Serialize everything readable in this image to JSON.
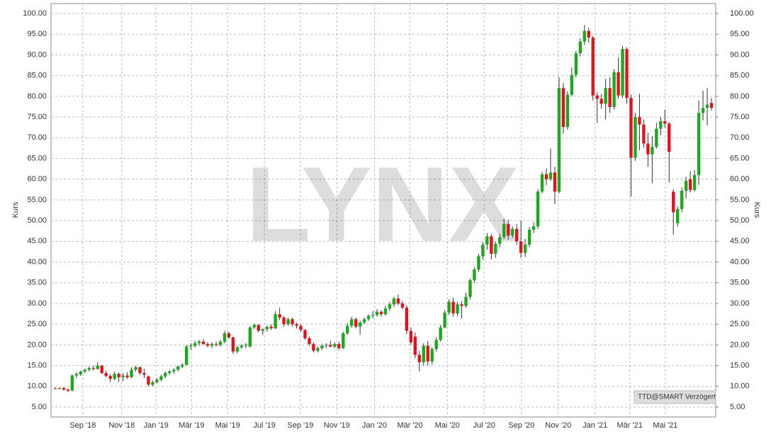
{
  "chart_data": {
    "type": "candlestick",
    "watermark": "LYNX",
    "source_label": "TTD@SMART Verzögert",
    "ylabel": "Kurs",
    "y2label": "Kurs",
    "up_color": "#1fa81f",
    "down_color": "#e0141e",
    "grid": true,
    "ylim": [
      2.6,
      102.4
    ],
    "y2lim": [
      2.6,
      102.4
    ],
    "yticks": [
      {
        "value": 5,
        "label": "5.00"
      },
      {
        "value": 10,
        "label": "10.00"
      },
      {
        "value": 15,
        "label": "15.00"
      },
      {
        "value": 20,
        "label": "20.00"
      },
      {
        "value": 25,
        "label": "25.00"
      },
      {
        "value": 30,
        "label": "30.00"
      },
      {
        "value": 35,
        "label": "35.00"
      },
      {
        "value": 40,
        "label": "40.00"
      },
      {
        "value": 45,
        "label": "45.00"
      },
      {
        "value": 50,
        "label": "50.00"
      },
      {
        "value": 55,
        "label": "55.00"
      },
      {
        "value": 60,
        "label": "60.00"
      },
      {
        "value": 65,
        "label": "65.00"
      },
      {
        "value": 70,
        "label": "70.00"
      },
      {
        "value": 75,
        "label": "75.00"
      },
      {
        "value": 80,
        "label": "80.00"
      },
      {
        "value": 85,
        "label": "85.00"
      },
      {
        "value": 90,
        "label": "90.00"
      },
      {
        "value": 95,
        "label": "95.00"
      },
      {
        "value": 100,
        "label": "100.00"
      }
    ],
    "y2ticks": [
      {
        "value": 5,
        "label": "5.00"
      },
      {
        "value": 10,
        "label": "10.00"
      },
      {
        "value": 15,
        "label": "15.00"
      },
      {
        "value": 20,
        "label": "20.00"
      },
      {
        "value": 25,
        "label": "25.00"
      },
      {
        "value": 30,
        "label": "30.00"
      },
      {
        "value": 35,
        "label": "35.00"
      },
      {
        "value": 40,
        "label": "40.00"
      },
      {
        "value": 45,
        "label": "45.00"
      },
      {
        "value": 50,
        "label": "50.00"
      },
      {
        "value": 55,
        "label": "55.00"
      },
      {
        "value": 60,
        "label": "60.00"
      },
      {
        "value": 65,
        "label": "65.00"
      },
      {
        "value": 70,
        "label": "70.00"
      },
      {
        "value": 75,
        "label": "75.00"
      },
      {
        "value": 80,
        "label": "80.00"
      },
      {
        "value": 85,
        "label": "85.00"
      },
      {
        "value": 90,
        "label": "90.00"
      },
      {
        "value": 95,
        "label": "95.00"
      },
      {
        "value": 100,
        "label": "100.00"
      }
    ],
    "xticks": [
      {
        "value": 6.5,
        "label": "Sep '18"
      },
      {
        "value": 15.7,
        "label": "Nov '18"
      },
      {
        "value": 23.8,
        "label": "Jan '19"
      },
      {
        "value": 32.2,
        "label": "Mär '19"
      },
      {
        "value": 40.7,
        "label": "Mai '19"
      },
      {
        "value": 49.4,
        "label": "Jul '19"
      },
      {
        "value": 57.9,
        "label": "Sep '19"
      },
      {
        "value": 66.5,
        "label": "Nov '19"
      },
      {
        "value": 75.4,
        "label": "Jan '20"
      },
      {
        "value": 83.8,
        "label": "Mär '20"
      },
      {
        "value": 92.6,
        "label": "Mai '20"
      },
      {
        "value": 101.3,
        "label": "Jul '20"
      },
      {
        "value": 110.1,
        "label": "Sep '20"
      },
      {
        "value": 118.8,
        "label": "Nov '20"
      },
      {
        "value": 127.5,
        "label": "Jan '21"
      },
      {
        "value": 135.7,
        "label": "Mär '21"
      },
      {
        "value": 144.1,
        "label": "Mai '21"
      }
    ],
    "values": [
      [
        9.5,
        9.8,
        9.3,
        9.4
      ],
      [
        9.4,
        9.7,
        9.2,
        9.6
      ],
      [
        9.6,
        9.8,
        9.0,
        9.2
      ],
      [
        9.2,
        9.4,
        8.6,
        8.9
      ],
      [
        9.0,
        12.9,
        8.8,
        12.6
      ],
      [
        12.6,
        13.4,
        12.0,
        13.0
      ],
      [
        12.9,
        13.8,
        12.5,
        13.6
      ],
      [
        13.6,
        14.3,
        13.2,
        14.0
      ],
      [
        14.0,
        14.8,
        13.6,
        14.4
      ],
      [
        14.4,
        15.0,
        13.8,
        14.2
      ],
      [
        14.2,
        15.8,
        14.0,
        15.0
      ],
      [
        15.0,
        15.2,
        13.0,
        13.2
      ],
      [
        13.2,
        13.8,
        12.2,
        12.5
      ],
      [
        12.5,
        13.0,
        11.0,
        11.8
      ],
      [
        11.8,
        13.5,
        11.5,
        13.0
      ],
      [
        13.0,
        13.4,
        11.0,
        12.2
      ],
      [
        12.2,
        13.2,
        11.2,
        12.6
      ],
      [
        12.6,
        13.4,
        11.8,
        12.2
      ],
      [
        12.2,
        14.6,
        12.0,
        14.0
      ],
      [
        14.0,
        15.0,
        13.6,
        14.6
      ],
      [
        14.6,
        14.8,
        12.8,
        13.2
      ],
      [
        13.2,
        14.2,
        12.0,
        12.8
      ],
      [
        12.4,
        12.6,
        10.0,
        10.4
      ],
      [
        10.4,
        11.4,
        10.0,
        11.0
      ],
      [
        11.0,
        12.0,
        10.8,
        11.6
      ],
      [
        11.6,
        12.8,
        11.2,
        12.4
      ],
      [
        12.4,
        13.6,
        12.0,
        13.2
      ],
      [
        13.2,
        14.0,
        12.8,
        13.6
      ],
      [
        13.6,
        14.4,
        13.0,
        14.0
      ],
      [
        14.0,
        15.0,
        13.6,
        14.8
      ],
      [
        14.8,
        15.6,
        14.4,
        15.2
      ],
      [
        15.2,
        20.0,
        15.0,
        19.6
      ],
      [
        19.6,
        20.4,
        18.8,
        19.8
      ],
      [
        19.8,
        21.0,
        19.4,
        20.4
      ],
      [
        20.4,
        21.2,
        19.8,
        20.8
      ],
      [
        20.8,
        21.4,
        20.0,
        20.2
      ],
      [
        20.2,
        20.6,
        19.4,
        19.8
      ],
      [
        19.8,
        20.6,
        19.2,
        20.2
      ],
      [
        20.2,
        20.8,
        19.6,
        20.0
      ],
      [
        20.0,
        21.2,
        19.6,
        20.8
      ],
      [
        20.8,
        23.4,
        20.4,
        22.8
      ],
      [
        22.8,
        23.2,
        21.4,
        21.8
      ],
      [
        21.8,
        22.0,
        17.8,
        18.4
      ],
      [
        18.4,
        19.8,
        18.0,
        19.4
      ],
      [
        19.4,
        20.2,
        19.0,
        19.8
      ],
      [
        19.8,
        20.4,
        19.2,
        20.0
      ],
      [
        19.6,
        24.6,
        19.4,
        24.2
      ],
      [
        24.2,
        25.2,
        23.8,
        24.8
      ],
      [
        24.8,
        25.0,
        23.0,
        23.4
      ],
      [
        23.4,
        24.0,
        22.4,
        23.8
      ],
      [
        23.8,
        24.6,
        23.2,
        24.4
      ],
      [
        24.4,
        25.0,
        23.6,
        24.0
      ],
      [
        24.0,
        28.2,
        23.8,
        27.4
      ],
      [
        27.4,
        29.0,
        26.0,
        26.6
      ],
      [
        26.6,
        27.0,
        24.4,
        25.0
      ],
      [
        25.0,
        26.6,
        24.6,
        26.2
      ],
      [
        26.2,
        26.6,
        24.4,
        25.0
      ],
      [
        25.0,
        25.4,
        24.0,
        24.6
      ],
      [
        24.6,
        25.0,
        23.2,
        23.6
      ],
      [
        23.6,
        23.8,
        21.2,
        21.6
      ],
      [
        21.6,
        22.0,
        19.8,
        20.2
      ],
      [
        20.2,
        20.6,
        18.2,
        18.6
      ],
      [
        18.6,
        19.6,
        18.2,
        19.2
      ],
      [
        19.2,
        20.2,
        18.8,
        19.8
      ],
      [
        19.8,
        20.4,
        19.2,
        20.0
      ],
      [
        20.0,
        21.0,
        19.4,
        19.6
      ],
      [
        19.6,
        20.6,
        19.2,
        20.2
      ],
      [
        20.2,
        20.8,
        18.8,
        19.2
      ],
      [
        19.2,
        23.2,
        19.0,
        22.8
      ],
      [
        22.8,
        25.2,
        22.4,
        24.6
      ],
      [
        24.6,
        26.8,
        24.2,
        26.2
      ],
      [
        26.2,
        26.6,
        24.0,
        24.4
      ],
      [
        24.4,
        25.8,
        22.4,
        25.4
      ],
      [
        25.4,
        26.6,
        25.0,
        26.2
      ],
      [
        26.2,
        27.4,
        25.8,
        27.0
      ],
      [
        27.0,
        28.2,
        26.4,
        27.2
      ],
      [
        27.2,
        28.6,
        26.8,
        28.0
      ],
      [
        28.0,
        28.4,
        26.8,
        27.4
      ],
      [
        27.4,
        29.4,
        27.0,
        28.8
      ],
      [
        28.8,
        30.4,
        28.2,
        29.8
      ],
      [
        29.8,
        31.6,
        29.2,
        31.2
      ],
      [
        31.2,
        32.2,
        29.6,
        30.0
      ],
      [
        30.0,
        30.6,
        28.6,
        29.0
      ],
      [
        29.0,
        29.6,
        22.6,
        23.4
      ],
      [
        23.4,
        24.2,
        20.0,
        20.6
      ],
      [
        22.0,
        23.0,
        16.8,
        17.6
      ],
      [
        17.6,
        18.6,
        13.6,
        15.8
      ],
      [
        15.8,
        20.4,
        15.0,
        19.8
      ],
      [
        19.8,
        21.0,
        15.0,
        16.0
      ],
      [
        16.0,
        19.4,
        15.2,
        19.0
      ],
      [
        19.0,
        21.8,
        18.4,
        21.2
      ],
      [
        21.2,
        24.8,
        20.8,
        24.2
      ],
      [
        24.2,
        28.4,
        24.0,
        27.8
      ],
      [
        27.8,
        31.0,
        27.2,
        30.4
      ],
      [
        30.4,
        31.4,
        26.8,
        27.6
      ],
      [
        27.6,
        30.4,
        27.0,
        29.8
      ],
      [
        29.8,
        30.6,
        26.4,
        29.4
      ],
      [
        29.4,
        32.6,
        29.0,
        31.6
      ],
      [
        31.6,
        36.0,
        31.0,
        35.6
      ],
      [
        35.6,
        38.8,
        35.0,
        38.2
      ],
      [
        38.2,
        42.0,
        37.6,
        41.4
      ],
      [
        41.4,
        44.8,
        40.6,
        44.2
      ],
      [
        44.2,
        47.0,
        43.0,
        46.2
      ],
      [
        46.2,
        46.8,
        40.6,
        42.0
      ],
      [
        42.0,
        45.0,
        41.0,
        44.4
      ],
      [
        44.4,
        46.8,
        43.6,
        46.0
      ],
      [
        46.0,
        50.4,
        45.6,
        49.2
      ],
      [
        49.2,
        50.2,
        45.4,
        46.4
      ],
      [
        46.4,
        48.6,
        45.8,
        48.0
      ],
      [
        48.0,
        49.2,
        44.2,
        45.0
      ],
      [
        45.0,
        50.0,
        41.0,
        42.2
      ],
      [
        42.2,
        45.6,
        41.2,
        44.2
      ],
      [
        44.2,
        48.4,
        43.6,
        47.8
      ],
      [
        47.8,
        49.6,
        47.0,
        48.6
      ],
      [
        48.6,
        57.6,
        48.0,
        57.0
      ],
      [
        57.0,
        61.8,
        56.6,
        61.2
      ],
      [
        61.2,
        62.6,
        58.6,
        60.0
      ],
      [
        60.0,
        67.4,
        59.6,
        61.6
      ],
      [
        61.6,
        63.0,
        54.0,
        57.0
      ],
      [
        57.0,
        84.6,
        56.6,
        82.0
      ],
      [
        82.0,
        83.2,
        71.0,
        72.6
      ],
      [
        72.6,
        81.2,
        72.0,
        80.4
      ],
      [
        80.4,
        87.0,
        80.0,
        85.2
      ],
      [
        85.2,
        91.0,
        84.6,
        90.4
      ],
      [
        90.4,
        94.0,
        89.6,
        93.2
      ],
      [
        93.2,
        97.2,
        92.4,
        95.8
      ],
      [
        95.8,
        96.6,
        93.0,
        94.2
      ],
      [
        94.2,
        94.6,
        79.0,
        80.2
      ],
      [
        80.2,
        81.0,
        73.6,
        79.4
      ],
      [
        79.4,
        80.6,
        77.0,
        78.2
      ],
      [
        78.2,
        84.2,
        74.4,
        82.0
      ],
      [
        82.0,
        84.6,
        76.0,
        77.4
      ],
      [
        77.4,
        86.6,
        76.8,
        85.8
      ],
      [
        85.8,
        89.4,
        79.4,
        80.2
      ],
      [
        80.2,
        92.2,
        79.6,
        91.4
      ],
      [
        91.4,
        91.8,
        78.2,
        79.6
      ],
      [
        79.6,
        80.4,
        55.8,
        65.2
      ],
      [
        65.2,
        76.0,
        64.4,
        75.0
      ],
      [
        75.0,
        80.6,
        67.0,
        73.2
      ],
      [
        73.2,
        74.4,
        67.6,
        68.6
      ],
      [
        68.6,
        71.2,
        63.0,
        66.0
      ],
      [
        66.0,
        70.4,
        59.0,
        67.8
      ],
      [
        67.8,
        73.6,
        67.4,
        72.2
      ],
      [
        72.2,
        75.0,
        70.6,
        74.0
      ],
      [
        74.0,
        76.8,
        72.4,
        73.4
      ],
      [
        73.4,
        73.8,
        59.2,
        66.6
      ],
      [
        57.0,
        57.6,
        46.6,
        52.0
      ],
      [
        49.4,
        53.4,
        48.6,
        52.8
      ],
      [
        52.8,
        58.0,
        52.0,
        57.2
      ],
      [
        57.2,
        60.6,
        55.4,
        59.6
      ],
      [
        60.0,
        62.0,
        56.8,
        57.4
      ],
      [
        57.4,
        62.2,
        57.0,
        61.0
      ],
      [
        61.0,
        79.0,
        58.6,
        76.0
      ],
      [
        76.0,
        81.4,
        74.2,
        77.2
      ],
      [
        77.2,
        82.0,
        73.0,
        78.0
      ],
      [
        78.4,
        79.6,
        76.6,
        77.2
      ]
    ]
  }
}
